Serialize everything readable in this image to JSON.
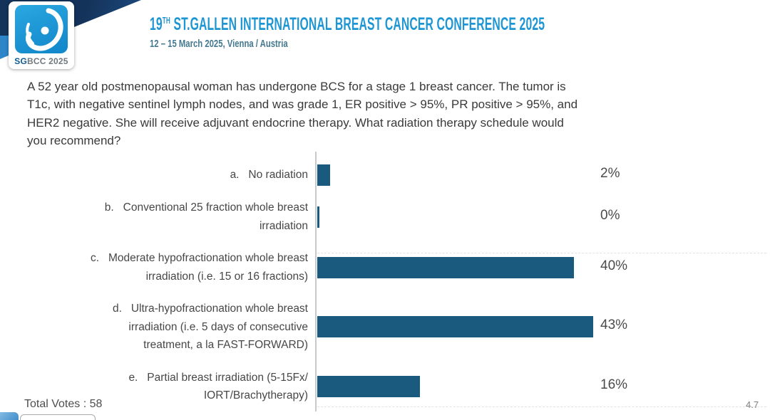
{
  "header": {
    "logo": {
      "badge_bold": "SG",
      "badge_rest": "BCC 2025"
    },
    "title_prefix": "19",
    "title_sup": "TH",
    "title_rest": " ST.GALLEN INTERNATIONAL BREAST CANCER CONFERENCE 2025",
    "subtitle": "12 – 15 March 2025, Vienna / Austria"
  },
  "question": {
    "lines": [
      "A 52 year old postmenopausal woman has undergone BCS for a stage 1 breast cancer.  The tumor is",
      "T1c, with negative sentinel lymph nodes, and was grade 1, ER positive > 95%, PR positive > 95%, and",
      "HER2 negative.  She will receive adjuvant endocrine therapy. What radiation therapy schedule would",
      "you recommend?"
    ]
  },
  "chart_data": {
    "type": "bar",
    "orientation": "horizontal",
    "unit": "%",
    "bar_color": "#1a5a7f",
    "xlim": [
      0,
      47
    ],
    "options": [
      {
        "letter": "a",
        "lines": [
          "No radiation"
        ],
        "value": 2,
        "value_label": "2%"
      },
      {
        "letter": "b",
        "lines": [
          "Conventional 25 fraction whole breast",
          "irradiation"
        ],
        "value": 0,
        "value_label": "0%"
      },
      {
        "letter": "c",
        "lines": [
          "Moderate hypofractionation whole breast",
          "irradiation (i.e. 15 or 16 fractions)"
        ],
        "value": 40,
        "value_label": "40%"
      },
      {
        "letter": "d",
        "lines": [
          "Ultra-hypofractionation whole breast",
          "irradiation (i.e. 5 days of consecutive",
          "treatment, a la FAST-FORWARD)"
        ],
        "value": 43,
        "value_label": "43%"
      },
      {
        "letter": "e",
        "lines": [
          "Partial breast irradiation (5-15Fx/",
          "IORT/Brachytherapy)"
        ],
        "value": 16,
        "value_label": "16%"
      }
    ]
  },
  "footer": {
    "total_votes": "Total Votes : 58",
    "page_number": "4.7"
  }
}
